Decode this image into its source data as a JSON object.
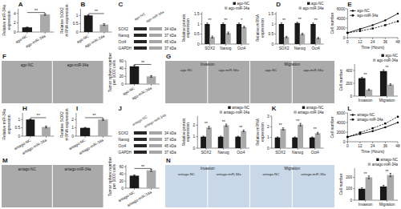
{
  "chart_data": [
    {
      "type": "bar",
      "title": "A",
      "categories": [
        "ago-NC",
        "ago-miR-34a"
      ],
      "values": [
        1.0,
        3.8
      ],
      "errors": [
        0.08,
        0.18
      ],
      "colors": [
        "#1a1a1a",
        "#aaaaaa"
      ],
      "ylabel": "Relative miR-34a\nexpression",
      "ylim": [
        0,
        5
      ],
      "yticks": [
        0,
        2,
        4
      ],
      "annotation": "**"
    },
    {
      "type": "bar",
      "title": "B",
      "categories": [
        "ago-NC",
        "ago-miR-34a"
      ],
      "values": [
        1.0,
        0.45
      ],
      "errors": [
        0.04,
        0.05
      ],
      "colors": [
        "#1a1a1a",
        "#aaaaaa"
      ],
      "ylabel": "Relative SOX2\nmRNA expression",
      "ylim": [
        0,
        1.4
      ],
      "yticks": [
        0,
        0.5,
        1
      ],
      "annotation": "**"
    },
    {
      "type": "blot",
      "title": "C",
      "categories": [
        "SOX2",
        "Nanog",
        "Oct4",
        "GAPDH"
      ],
      "labels": [
        "34 kDa",
        "37 kDa",
        "45 kDa",
        "37 kDa"
      ],
      "columns": [
        "ago-NC",
        "ago-miR-34a"
      ],
      "colors": [
        "#262626",
        "#a6a6a6"
      ]
    },
    {
      "type": "bar",
      "categories": [
        "SOX2",
        "Nanog",
        "Oct4"
      ],
      "series": [
        {
          "name": "ago-NC",
          "color": "#1a1a1a",
          "values": [
            1.0,
            1.0,
            1.0
          ],
          "errors": [
            0.05,
            0.05,
            0.05
          ]
        },
        {
          "name": "ago-miR-34a",
          "color": "#aaaaaa",
          "values": [
            0.35,
            0.55,
            0.85
          ],
          "errors": [
            0.05,
            0.05,
            0.04
          ]
        }
      ],
      "ylabel": "Relative protein\nexpression",
      "ylim": [
        0,
        1.6
      ],
      "yticks": [
        0,
        0.5,
        1,
        1.5
      ],
      "legend": "upper right",
      "annotations": [
        "**",
        "**",
        "*"
      ]
    },
    {
      "type": "bar",
      "title": "D",
      "categories": [
        "SOX2",
        "Nanog",
        "Oct4"
      ],
      "series": [
        {
          "name": "ago-NC",
          "color": "#1a1a1a",
          "values": [
            1.0,
            1.05,
            1.0
          ],
          "errors": [
            0.05,
            0.04,
            0.05
          ]
        },
        {
          "name": "ago-miR-34a",
          "color": "#aaaaaa",
          "values": [
            0.35,
            0.5,
            0.3
          ],
          "errors": [
            0.04,
            0.04,
            0.03
          ]
        }
      ],
      "ylabel": "Relative mRNA\nexpression",
      "ylim": [
        0,
        1.6
      ],
      "yticks": [
        0,
        0.5,
        1,
        1.5
      ],
      "legend": "upper right",
      "annotations": [
        "**",
        "**",
        "**"
      ]
    },
    {
      "type": "line",
      "title": "E",
      "x": [
        0,
        12,
        24,
        36,
        48
      ],
      "series": [
        {
          "name": "ago-NC",
          "color": "#000000",
          "marker": "circle",
          "line_style": "solid",
          "values": [
            1000,
            1800,
            2600,
            3600,
            5000
          ]
        },
        {
          "name": "ago-miR-34a",
          "color": "#000000",
          "marker": "square",
          "line_style": "dashed",
          "values": [
            1000,
            1400,
            1900,
            2600,
            3400
          ]
        }
      ],
      "xlabel": "Time (Hours)",
      "ylabel": "Cell number",
      "xlim": [
        0,
        48
      ],
      "xticks": [
        0,
        12,
        24,
        36,
        48
      ],
      "ylim": [
        0,
        6000
      ],
      "yticks": [
        0,
        2000,
        4000,
        6000
      ],
      "legend": "upper left"
    },
    {
      "type": "image",
      "title": "F",
      "color": "#aaaaaa",
      "columns": [
        "ago-NC",
        "ago-miR-34a"
      ]
    },
    {
      "type": "bar",
      "categories": [
        "ago-NC",
        "ago-miR-34a"
      ],
      "values": [
        46,
        20
      ],
      "errors": [
        3,
        2
      ],
      "colors": [
        "#1a1a1a",
        "#aaaaaa"
      ],
      "ylabel": "Tumor sphere number\nper 1000 cells",
      "ylim": [
        0,
        60
      ],
      "yticks": [
        0,
        20,
        40,
        60
      ],
      "annotation": "**"
    },
    {
      "type": "image",
      "title": "G",
      "color": "#aaaaaa",
      "groups": [
        "Invasion",
        "Migration"
      ],
      "columns": [
        "ago-NC",
        "ago-miR-34a",
        "ago-NC",
        "ago-miR-34a"
      ]
    },
    {
      "type": "bar",
      "categories": [
        "Invasion",
        "Migration"
      ],
      "series": [
        {
          "name": "ago-NC",
          "color": "#1a1a1a",
          "values": [
            280,
            390
          ],
          "errors": [
            15,
            20
          ]
        },
        {
          "name": "ago-miR-34a",
          "color": "#aaaaaa",
          "values": [
            100,
            180
          ],
          "errors": [
            10,
            12
          ]
        }
      ],
      "ylabel": "Cell number",
      "ylim": [
        0,
        500
      ],
      "yticks": [
        0,
        200,
        400
      ],
      "legend": "upper right",
      "annotations": [
        "**",
        "**"
      ]
    },
    {
      "type": "bar",
      "title": "H",
      "categories": [
        "antago-NC",
        "antago-miR-34a"
      ],
      "values": [
        1.0,
        0.55
      ],
      "errors": [
        0.04,
        0.05
      ],
      "colors": [
        "#1a1a1a",
        "#aaaaaa"
      ],
      "ylabel": "Relative miR-34a\nexpression",
      "ylim": [
        0,
        1.4
      ],
      "yticks": [
        0,
        0.5,
        1
      ],
      "annotation": "**"
    },
    {
      "type": "bar",
      "title": "I",
      "categories": [
        "antago-NC",
        "antago-miR-34a"
      ],
      "values": [
        1.0,
        2.0
      ],
      "errors": [
        0.05,
        0.1
      ],
      "colors": [
        "#1a1a1a",
        "#aaaaaa"
      ],
      "ylabel": "Relative SOX2\nmRNA expression",
      "ylim": [
        0,
        2.8
      ],
      "yticks": [
        0,
        1,
        2
      ],
      "annotation": "**"
    },
    {
      "type": "blot",
      "title": "J",
      "categories": [
        "SOX2",
        "Nanog",
        "Oct4",
        "GAPDH"
      ],
      "labels": [
        "34 kDa",
        "37 kDa",
        "45 kDa",
        "37 kDa"
      ],
      "columns": [
        "antago-NC",
        "antago-miR-34a"
      ],
      "colors": [
        "#262626",
        "#a6a6a6"
      ]
    },
    {
      "type": "bar",
      "categories": [
        "SOX2",
        "Nanog",
        "Oct4"
      ],
      "series": [
        {
          "name": "antago-NC",
          "color": "#1a1a1a",
          "values": [
            1.0,
            1.0,
            1.0
          ],
          "errors": [
            0.05,
            0.05,
            0.05
          ]
        },
        {
          "name": "antago-miR-34a",
          "color": "#aaaaaa",
          "values": [
            1.8,
            2.0,
            1.5
          ],
          "errors": [
            0.1,
            0.1,
            0.08
          ]
        }
      ],
      "ylabel": "Relative protein\nexpression",
      "ylim": [
        0,
        2.8
      ],
      "yticks": [
        0,
        1,
        2
      ],
      "legend": "upper right",
      "annotations": [
        "**",
        "**",
        "**"
      ]
    },
    {
      "type": "bar",
      "title": "K",
      "categories": [
        "SOX2",
        "Nanog",
        "Oct4"
      ],
      "series": [
        {
          "name": "antago-NC",
          "color": "#1a1a1a",
          "values": [
            1.0,
            1.0,
            1.0
          ],
          "errors": [
            0.05,
            0.05,
            0.05
          ]
        },
        {
          "name": "antago-miR-34a",
          "color": "#aaaaaa",
          "values": [
            1.8,
            2.2,
            1.4
          ],
          "errors": [
            0.1,
            0.12,
            0.08
          ]
        }
      ],
      "ylabel": "Relative mRNA\nexpression",
      "ylim": [
        0,
        3.0
      ],
      "yticks": [
        0,
        1,
        2,
        3
      ],
      "legend": "upper right",
      "annotations": [
        "**",
        "**",
        "**"
      ]
    },
    {
      "type": "line",
      "title": "L",
      "x": [
        0,
        12,
        24,
        36,
        48
      ],
      "series": [
        {
          "name": "antago-NC",
          "color": "#000000",
          "marker": "circle",
          "line_style": "solid",
          "values": [
            1000,
            1600,
            2200,
            3000,
            4000
          ]
        },
        {
          "name": "antago-miR-34a",
          "color": "#000000",
          "marker": "square",
          "line_style": "dashed",
          "values": [
            1000,
            1900,
            2800,
            3800,
            5200
          ]
        }
      ],
      "xlabel": "Time (Hours)",
      "ylabel": "Cell number",
      "xlim": [
        0,
        48
      ],
      "xticks": [
        0,
        12,
        24,
        36,
        48
      ],
      "ylim": [
        0,
        6000
      ],
      "yticks": [
        0,
        2000,
        4000,
        6000
      ],
      "legend": "upper left"
    },
    {
      "type": "image",
      "title": "M",
      "color": "#aaaaaa",
      "columns": [
        "antago-NC",
        "antago-miR-34a"
      ]
    },
    {
      "type": "bar",
      "categories": [
        "antago-NC",
        "antago-miR-34a"
      ],
      "values": [
        35,
        50
      ],
      "errors": [
        2,
        3
      ],
      "colors": [
        "#1a1a1a",
        "#aaaaaa"
      ],
      "ylabel": "Tumor sphere number\nper 1000 cells",
      "ylim": [
        0,
        65
      ],
      "yticks": [
        0,
        20,
        40,
        60
      ],
      "annotation": "**"
    },
    {
      "type": "image",
      "title": "N",
      "color": "#c8d8e8",
      "groups": [
        "Invasion",
        "Migration"
      ],
      "columns": [
        "antago-NC",
        "antago-miR-34a",
        "antago-NC",
        "antago-miR-34a"
      ]
    },
    {
      "type": "bar",
      "categories": [
        "Invasion",
        "Migration"
      ],
      "series": [
        {
          "name": "antago-NC",
          "color": "#1a1a1a",
          "values": [
            100,
            120
          ],
          "errors": [
            8,
            10
          ]
        },
        {
          "name": "antago-miR-34a",
          "color": "#aaaaaa",
          "values": [
            200,
            220
          ],
          "errors": [
            12,
            15
          ]
        }
      ],
      "ylabel": "Cell number",
      "ylim": [
        0,
        280
      ],
      "yticks": [
        0,
        100,
        200
      ],
      "legend": "upper right",
      "annotations": [
        "**",
        "**"
      ]
    }
  ]
}
